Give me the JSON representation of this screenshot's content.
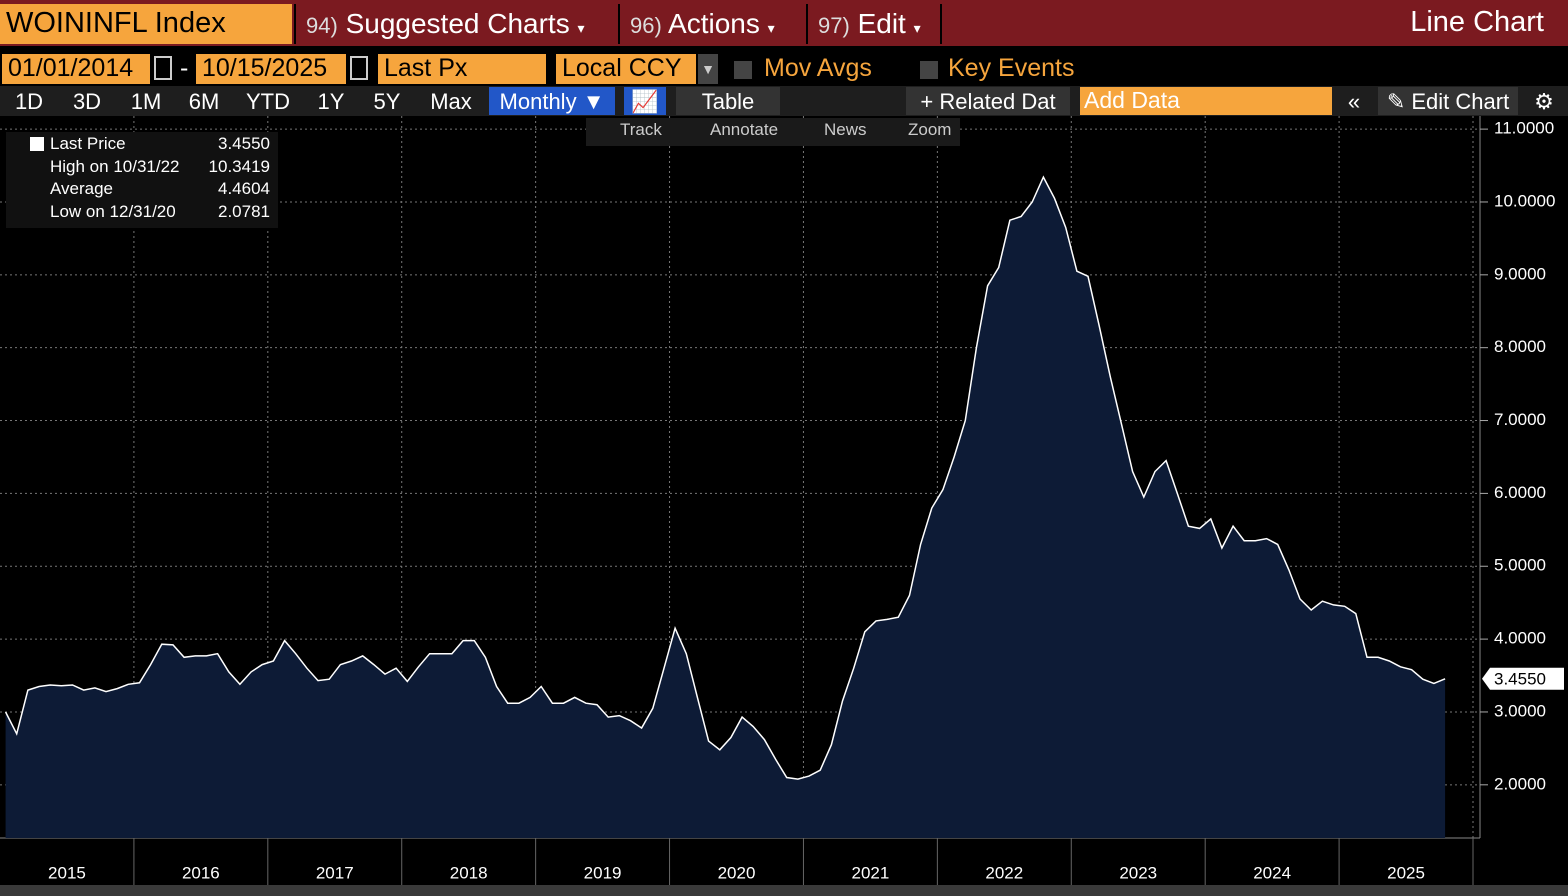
{
  "header": {
    "ticker": "WOININFL Index",
    "menus": [
      {
        "num": "94)",
        "label": "Suggested Charts"
      },
      {
        "num": "96)",
        "label": "Actions"
      },
      {
        "num": "97)",
        "label": "Edit"
      }
    ],
    "title": "Line Chart"
  },
  "controls": {
    "start": "01/01/2014",
    "dash": "-",
    "end": "10/15/2025",
    "field": "Last Px",
    "currency": "Local CCY",
    "mov_avgs": "Mov Avgs",
    "key_events": "Key Events"
  },
  "ranges": [
    "1D",
    "3D",
    "1M",
    "6M",
    "YTD",
    "1Y",
    "5Y",
    "Max"
  ],
  "period": "Monthly",
  "table": "Table",
  "related": "Related Dat",
  "add_data": "Add Data",
  "edit_chart": "Edit Chart",
  "tools": [
    "Track",
    "Annotate",
    "News",
    "Zoom"
  ],
  "legend": [
    {
      "label": "Last Price",
      "value": "3.4550"
    },
    {
      "label": "High on 10/31/22",
      "value": "10.3419"
    },
    {
      "label": "Average",
      "value": "4.4604"
    },
    {
      "label": "Low on 12/31/20",
      "value": "2.0781"
    }
  ],
  "chart_data": {
    "type": "area",
    "color": "#ffffff",
    "fill": "#0d1b36",
    "years": [
      "2015",
      "2016",
      "2017",
      "2018",
      "2019",
      "2020",
      "2021",
      "2022",
      "2023",
      "2024",
      "2025"
    ],
    "values": [
      3.0,
      2.7,
      3.3,
      3.35,
      3.37,
      3.36,
      3.37,
      3.3,
      3.33,
      3.28,
      3.32,
      3.38,
      3.4,
      3.65,
      3.93,
      3.92,
      3.75,
      3.77,
      3.77,
      3.8,
      3.55,
      3.38,
      3.55,
      3.65,
      3.7,
      3.98,
      3.8,
      3.6,
      3.43,
      3.45,
      3.65,
      3.7,
      3.77,
      3.65,
      3.52,
      3.6,
      3.42,
      3.62,
      3.8,
      3.8,
      3.8,
      3.98,
      3.98,
      3.75,
      3.35,
      3.12,
      3.12,
      3.2,
      3.35,
      3.12,
      3.12,
      3.2,
      3.12,
      3.1,
      2.93,
      2.95,
      2.88,
      2.78,
      3.05,
      3.6,
      4.15,
      3.8,
      3.2,
      2.6,
      2.48,
      2.65,
      2.93,
      2.8,
      2.62,
      2.35,
      2.1,
      2.0781,
      2.12,
      2.2,
      2.55,
      3.15,
      3.6,
      4.1,
      4.25,
      4.27,
      4.3,
      4.6,
      5.3,
      5.8,
      6.05,
      6.5,
      7.0,
      8.0,
      8.85,
      9.1,
      9.75,
      9.8,
      10.0,
      10.3419,
      10.05,
      9.65,
      9.05,
      8.98,
      8.3,
      7.6,
      6.95,
      6.3,
      5.95,
      6.3,
      6.45,
      6.0,
      5.55,
      5.52,
      5.65,
      5.25,
      5.55,
      5.35,
      5.35,
      5.38,
      5.3,
      4.95,
      4.55,
      4.4,
      4.52,
      4.47,
      4.45,
      4.35,
      3.75,
      3.75,
      3.7,
      3.62,
      3.58,
      3.45,
      3.39,
      3.455
    ],
    "ylim": [
      1.27,
      11.18
    ],
    "yticks": [
      {
        "value": 2,
        "label": "2.0000"
      },
      {
        "value": 3,
        "label": "3.0000"
      },
      {
        "value": 4,
        "label": "4.0000"
      },
      {
        "value": 5,
        "label": "5.0000"
      },
      {
        "value": 6,
        "label": "6.0000"
      },
      {
        "value": 7,
        "label": "7.0000"
      },
      {
        "value": 8,
        "label": "8.0000"
      },
      {
        "value": 9,
        "label": "9.0000"
      },
      {
        "value": 10,
        "label": "10.0000"
      },
      {
        "value": 11,
        "label": "11.0000"
      }
    ],
    "grid": true
  }
}
